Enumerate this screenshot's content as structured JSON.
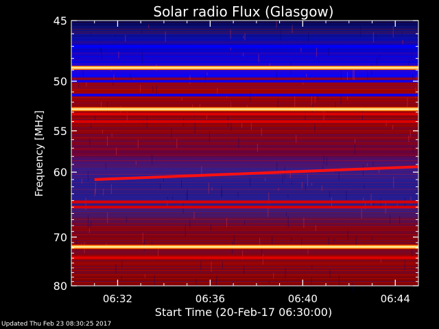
{
  "chart_data": {
    "type": "heatmap",
    "title": "Solar radio Flux (Glasgow)",
    "xlabel": "Start Time (20-Feb-17 06:30:00)",
    "ylabel": "Frequency [MHz]",
    "x_ticks": [
      "06:32",
      "06:36",
      "06:40",
      "06:44"
    ],
    "x_tick_minutes": [
      2,
      6,
      10,
      14
    ],
    "xlim_minutes": [
      0,
      15
    ],
    "y_ticks": [
      45,
      50,
      55,
      60,
      70,
      80
    ],
    "ylim": [
      45,
      80
    ],
    "y_scale": "reciprocal",
    "colormap": [
      "#000000",
      "#1a1aa0",
      "#0000ff",
      "#800000",
      "#ff0000",
      "#ffff80",
      "#ffffff"
    ],
    "bright_bands_mhz": [
      48.8,
      52.7,
      71.8
    ],
    "red_bands_mhz": [
      53.2,
      54.0,
      64.2,
      65.0,
      73.9
    ],
    "blue_bands_mhz": [
      47.0,
      50.0,
      51.3
    ],
    "drift_feature": {
      "start": {
        "minute": 1.0,
        "mhz": 61.0
      },
      "end": {
        "minute": 15.0,
        "mhz": 59.3
      }
    }
  },
  "footer": {
    "updated": "Updated Thu Feb 23 08:30:25 2017"
  }
}
